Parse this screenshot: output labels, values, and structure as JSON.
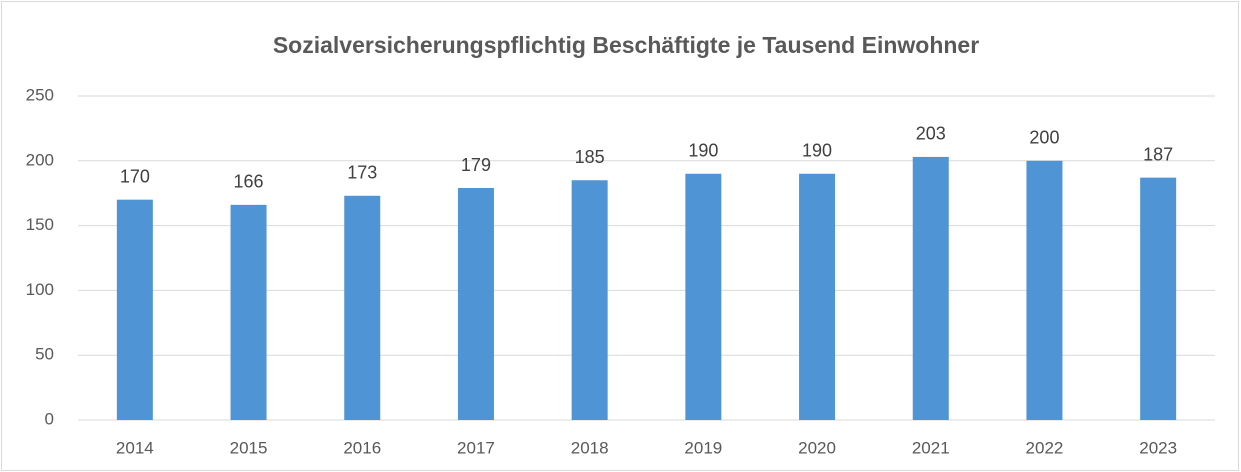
{
  "chart_data": {
    "type": "bar",
    "title": "Sozialversicherungspflichtig Beschäftigte je Tausend Einwohner",
    "categories": [
      "2014",
      "2015",
      "2016",
      "2017",
      "2018",
      "2019",
      "2020",
      "2021",
      "2022",
      "2023"
    ],
    "values": [
      170,
      166,
      173,
      179,
      185,
      190,
      190,
      203,
      200,
      187
    ],
    "color": "#4f94d4",
    "ylim": [
      0,
      250
    ],
    "yticks": [
      0,
      50,
      100,
      150,
      200,
      250
    ],
    "grid": true,
    "data_labels": true
  }
}
